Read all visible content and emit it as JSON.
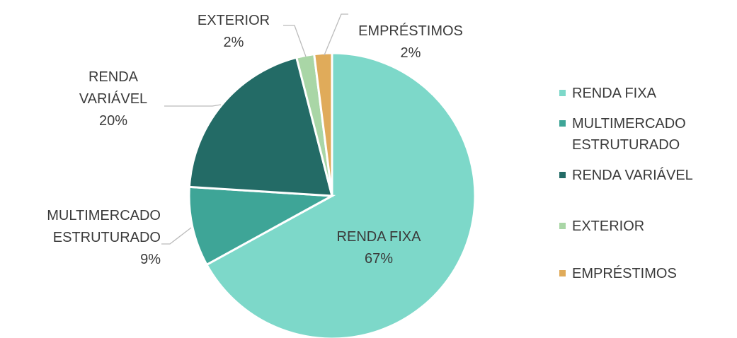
{
  "chart_data": {
    "type": "pie",
    "categories": [
      "RENDA FIXA",
      "MULTIMERCADO ESTRUTURADO",
      "RENDA VARIÁVEL",
      "EXTERIOR",
      "EMPRÉSTIMOS"
    ],
    "values": [
      67,
      9,
      20,
      2,
      2
    ],
    "value_labels": [
      "67%",
      "9%",
      "20%",
      "2%",
      "2%"
    ],
    "colors": [
      "#7dd8c9",
      "#3ea597",
      "#236b66",
      "#a9d6a6",
      "#e0ab5a"
    ],
    "legend": "right"
  }
}
